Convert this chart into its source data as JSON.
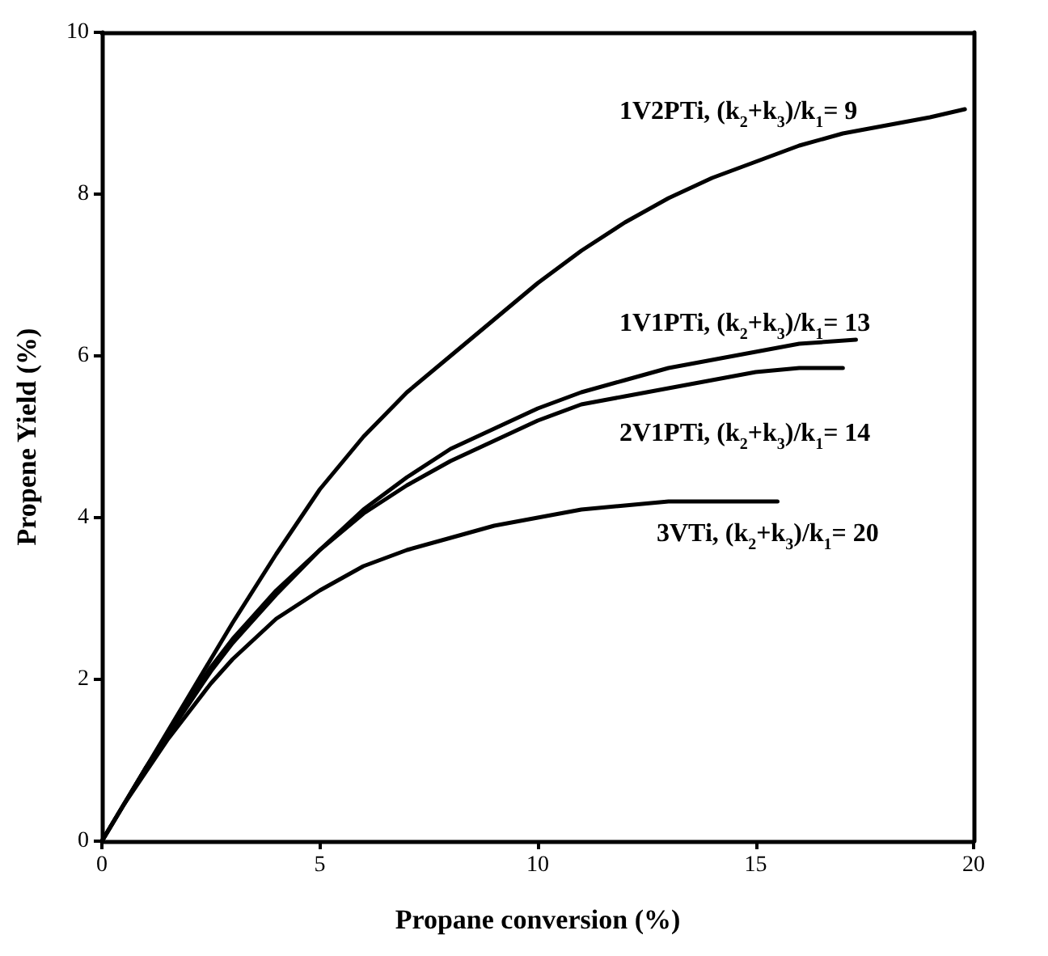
{
  "chart_data": {
    "type": "line",
    "xlabel": "Propane conversion (%)",
    "ylabel": "Propene Yield (%)",
    "xlim": [
      0,
      20
    ],
    "xticks": [
      0,
      5,
      10,
      15,
      20
    ],
    "ylim": [
      0,
      10
    ],
    "yticks": [
      0,
      2,
      4,
      6,
      8,
      10
    ],
    "grid": false,
    "marker": "none",
    "line_style": "solid",
    "series": [
      {
        "color": "#000000",
        "x": [
          0,
          0.5,
          1,
          1.5,
          2,
          2.5,
          3,
          4,
          5,
          6,
          7,
          8,
          9,
          10,
          11,
          12,
          13,
          14,
          15,
          16,
          17,
          18,
          19,
          19.8
        ],
        "values": [
          0,
          0.45,
          0.9,
          1.35,
          1.8,
          2.25,
          2.7,
          3.55,
          4.35,
          5.0,
          5.55,
          6.0,
          6.45,
          6.9,
          7.3,
          7.65,
          7.95,
          8.2,
          8.4,
          8.6,
          8.75,
          8.85,
          8.95,
          9.05
        ]
      },
      {
        "color": "#000000",
        "x": [
          0,
          0.5,
          1,
          1.5,
          2,
          2.5,
          3,
          4,
          5,
          6,
          7,
          8,
          9,
          10,
          11,
          12,
          13,
          14,
          15,
          16,
          17.3
        ],
        "values": [
          0,
          0.45,
          0.9,
          1.3,
          1.75,
          2.15,
          2.5,
          3.1,
          3.6,
          4.1,
          4.5,
          4.85,
          5.1,
          5.35,
          5.55,
          5.7,
          5.85,
          5.95,
          6.05,
          6.15,
          6.2
        ]
      },
      {
        "color": "#000000",
        "x": [
          0,
          0.5,
          1,
          1.5,
          2,
          2.5,
          3,
          4,
          5,
          6,
          7,
          8,
          9,
          10,
          11,
          12,
          13,
          14,
          15,
          16,
          17
        ],
        "values": [
          0,
          0.45,
          0.9,
          1.3,
          1.7,
          2.1,
          2.45,
          3.05,
          3.6,
          4.05,
          4.4,
          4.7,
          4.95,
          5.2,
          5.4,
          5.5,
          5.6,
          5.7,
          5.8,
          5.85,
          5.85
        ]
      },
      {
        "color": "#000000",
        "x": [
          0,
          0.5,
          1,
          1.5,
          2,
          2.5,
          3,
          4,
          5,
          6,
          7,
          8,
          9,
          10,
          11,
          12,
          13,
          14,
          15.5
        ],
        "values": [
          0,
          0.45,
          0.85,
          1.25,
          1.6,
          1.95,
          2.25,
          2.75,
          3.1,
          3.4,
          3.6,
          3.75,
          3.9,
          4.0,
          4.1,
          4.15,
          4.2,
          4.2,
          4.2
        ]
      }
    ],
    "annotations": [
      "1V2PTi, (k$_{2}$+k$_{3}$)/k$_{1}$= 9",
      "1V1PTi, (k$_{2}$+k$_{3}$)/k$_{1}$= 13",
      "2V1PTi, (k$_{2}$+k$_{3}$)/k$_{1}$= 14",
      "3VTi, (k$_{2}$+k$_{3}$)/k$_{1}$= 20"
    ]
  }
}
